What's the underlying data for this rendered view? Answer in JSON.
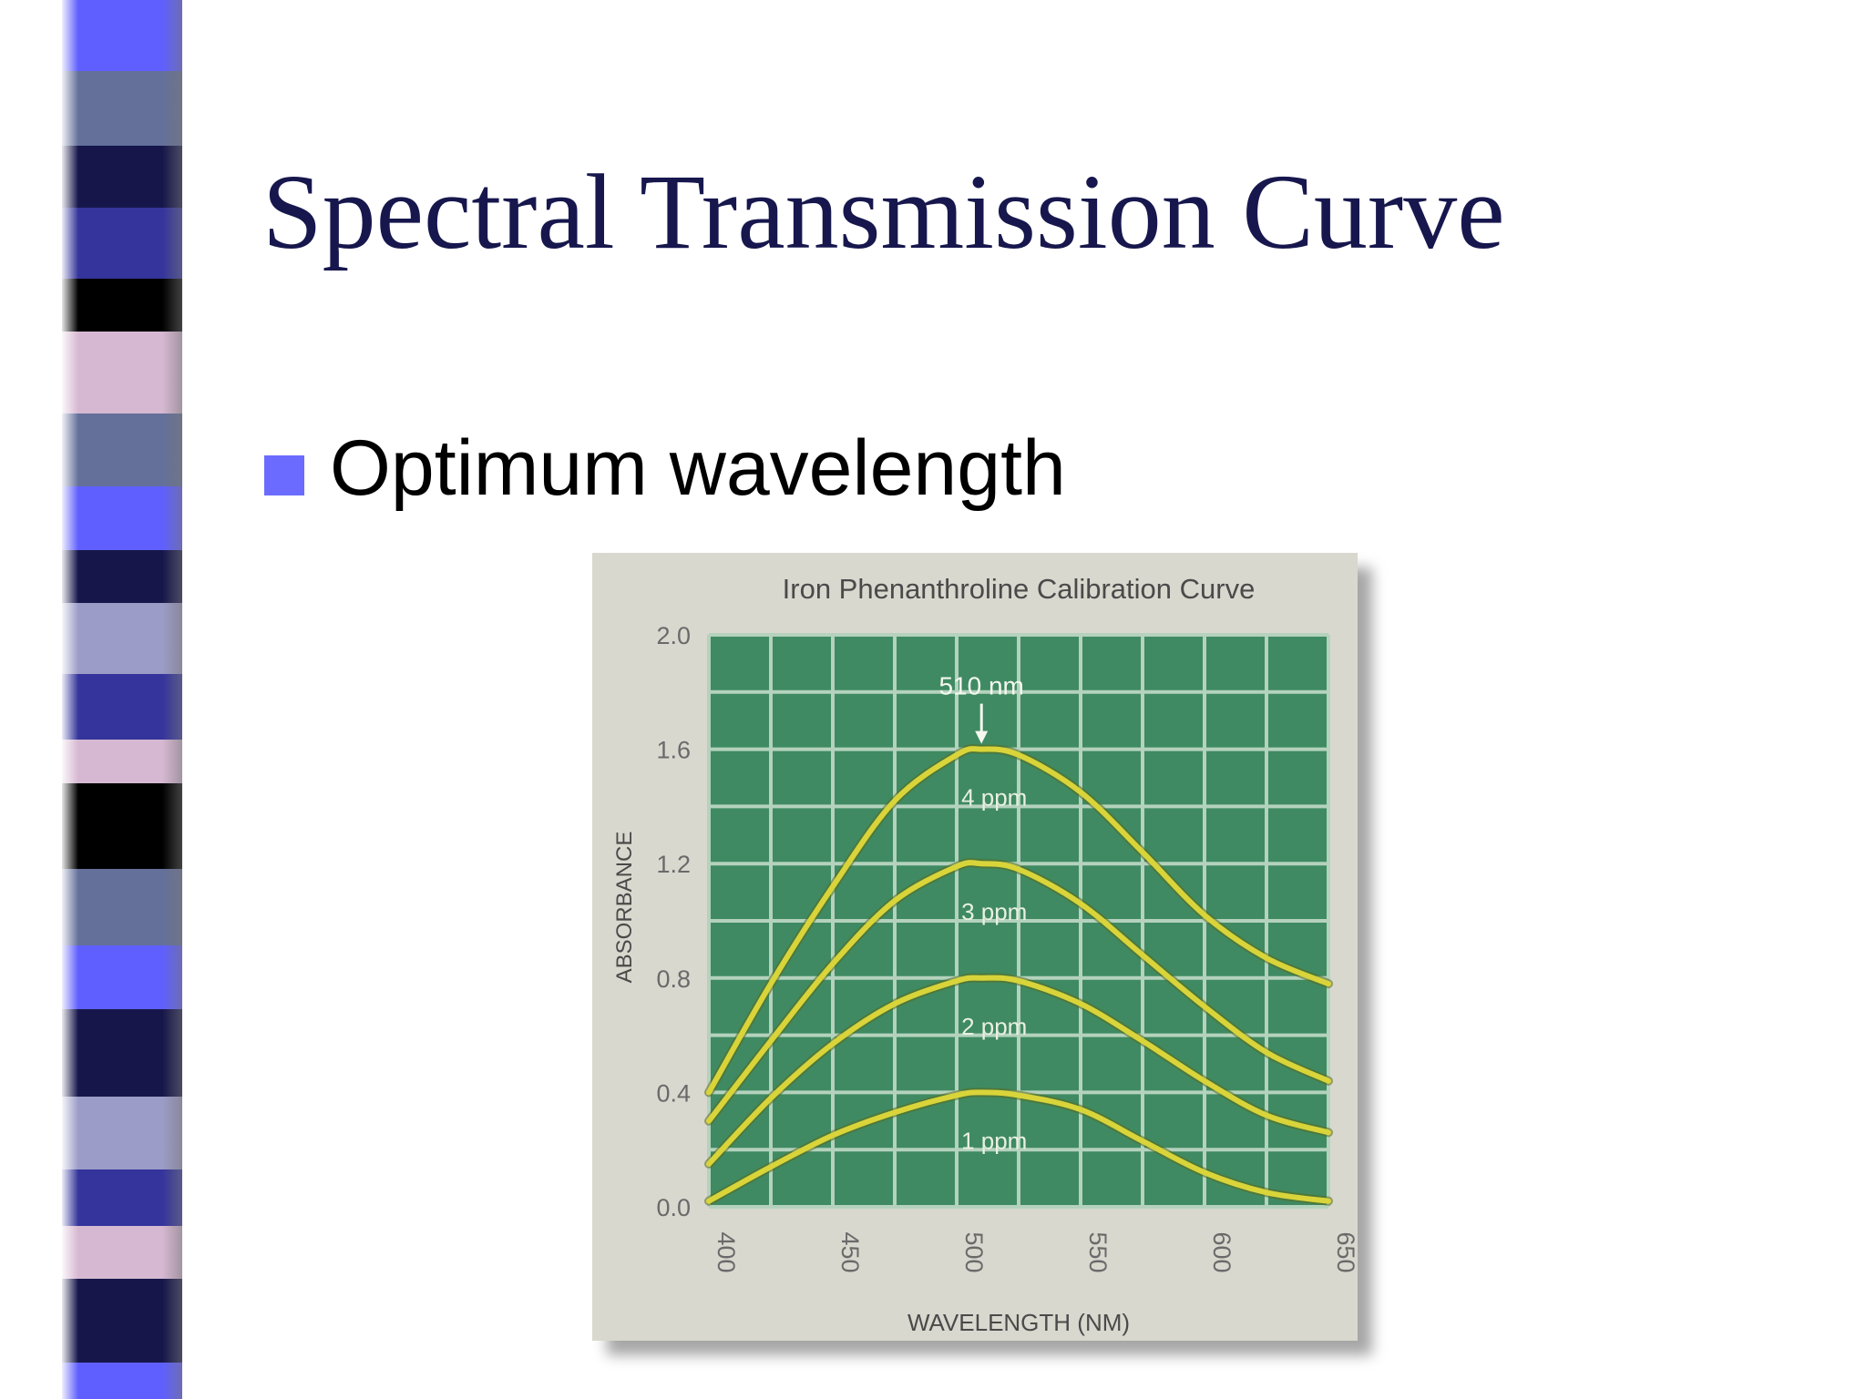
{
  "slide": {
    "title": "Spectral Transmission Curve",
    "bullet": "Optimum wavelength",
    "colors": {
      "title": "#17174e",
      "bullet": "#6b6bff",
      "stripes": [
        "#5f5fff",
        "#64709a",
        "#16164a",
        "#34349c",
        "#000000",
        "#d6b8d2",
        "#9c9cc8"
      ]
    }
  },
  "chart_data": {
    "type": "line",
    "title": "Iron Phenanthroline Calibration Curve",
    "xlabel": "WAVELENGTH (NM)",
    "ylabel": "ABSORBANCE",
    "xlim": [
      400,
      650
    ],
    "ylim": [
      0.0,
      2.0
    ],
    "xticks": [
      "400",
      "450",
      "500",
      "550",
      "600",
      "650"
    ],
    "yticks": [
      "0.0",
      "0.4",
      "0.8",
      "1.2",
      "1.6",
      "2.0"
    ],
    "grid": true,
    "colors": {
      "plot_bg": "#3f8a62",
      "grid": "#b4d2bd",
      "frame": "#d8d8cf",
      "line": "#d9d43a",
      "text": "#4a4a4a"
    },
    "annotation": {
      "text": "510 nm",
      "x": 510,
      "y": 1.6
    },
    "series": [
      {
        "name": "4 ppm",
        "x": [
          400,
          425,
          450,
          475,
          500,
          510,
          525,
          550,
          575,
          600,
          625,
          650
        ],
        "y": [
          0.4,
          0.78,
          1.12,
          1.42,
          1.58,
          1.6,
          1.58,
          1.45,
          1.24,
          1.02,
          0.87,
          0.78
        ]
      },
      {
        "name": "3 ppm",
        "x": [
          400,
          425,
          450,
          475,
          500,
          510,
          525,
          550,
          575,
          600,
          625,
          650
        ],
        "y": [
          0.3,
          0.58,
          0.85,
          1.07,
          1.19,
          1.2,
          1.18,
          1.06,
          0.88,
          0.7,
          0.54,
          0.44
        ]
      },
      {
        "name": "2 ppm",
        "x": [
          400,
          425,
          450,
          475,
          500,
          510,
          525,
          550,
          575,
          600,
          625,
          650
        ],
        "y": [
          0.15,
          0.38,
          0.57,
          0.71,
          0.79,
          0.8,
          0.79,
          0.71,
          0.58,
          0.44,
          0.32,
          0.26
        ]
      },
      {
        "name": "1 ppm",
        "x": [
          400,
          425,
          450,
          475,
          500,
          510,
          525,
          550,
          575,
          600,
          625,
          650
        ],
        "y": [
          0.02,
          0.14,
          0.25,
          0.33,
          0.39,
          0.4,
          0.39,
          0.34,
          0.23,
          0.12,
          0.05,
          0.02
        ]
      }
    ]
  }
}
